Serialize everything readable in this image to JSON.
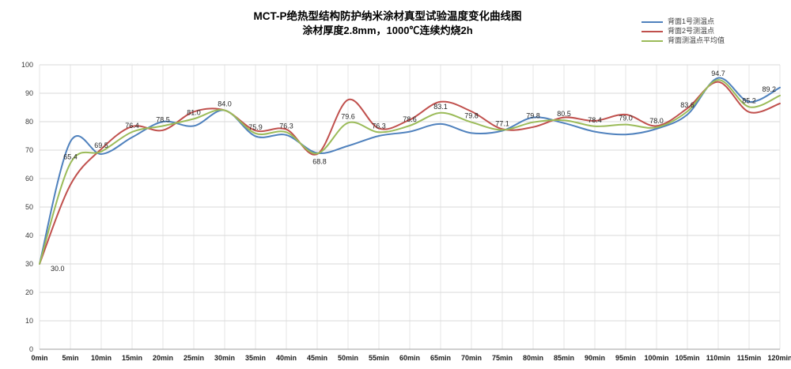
{
  "header": {
    "title": "MCT-P绝热型结构防护纳米涂材真型试验温度变化曲线图",
    "subtitle": "涂材厚度2.8mm，1000℃连续灼烧2h"
  },
  "colors": {
    "series_blue": "#4F81BD",
    "series_red": "#C0504D",
    "series_green": "#9BBB59",
    "gridline": "#d9d9d9",
    "gridline_vertical": "#e6e6e6",
    "axis_line": "#9f9f9f",
    "background": "#ffffff"
  },
  "chart_data": {
    "type": "line",
    "title": "MCT-P绝热型结构防护纳米涂材真型试验温度变化曲线图",
    "subtitle": "涂材厚度2.8mm，1000℃连续灼烧2h",
    "x_minutes": [
      0,
      5,
      10,
      15,
      20,
      25,
      30,
      35,
      40,
      45,
      50,
      55,
      60,
      65,
      70,
      75,
      80,
      85,
      90,
      95,
      100,
      105,
      110,
      115,
      120
    ],
    "x_tick_labels": [
      "0min",
      "5min",
      "10min",
      "15min",
      "20min",
      "25min",
      "30min",
      "35min",
      "40min",
      "45min",
      "50min",
      "55min",
      "60min",
      "65min",
      "70min",
      "75min",
      "80min",
      "85min",
      "90min",
      "95min",
      "100min",
      "105min",
      "110min",
      "115min",
      "120min"
    ],
    "y_tick_labels": [
      "0",
      "10",
      "20",
      "30",
      "40",
      "50",
      "60",
      "70",
      "80",
      "90",
      "100"
    ],
    "ylim": [
      0,
      100
    ],
    "y_tick_step": 10,
    "grid": true,
    "smooth_lines": true,
    "legend_position": "top-right",
    "series": [
      {
        "name": "背面1号测温点",
        "color": "#4F81BD",
        "values": [
          30.0,
          73.0,
          68.6,
          74.5,
          80.0,
          78.5,
          84.0,
          74.9,
          75.3,
          69.0,
          71.5,
          75.0,
          76.5,
          79.2,
          76.0,
          76.8,
          81.5,
          79.5,
          76.5,
          75.5,
          77.5,
          82.5,
          95.4,
          87.0,
          92.0
        ],
        "data_labels": false
      },
      {
        "name": "背面2号测温点",
        "color": "#C0504D",
        "values": [
          30.0,
          57.8,
          70.4,
          78.3,
          77.0,
          83.5,
          84.0,
          76.9,
          77.3,
          68.6,
          87.7,
          77.6,
          80.7,
          87.0,
          83.6,
          77.4,
          78.1,
          81.5,
          80.3,
          82.5,
          78.5,
          84.7,
          94.0,
          83.4,
          86.4
        ],
        "data_labels": false
      },
      {
        "name": "背面测温点平均值",
        "color": "#9BBB59",
        "values": [
          30.0,
          65.4,
          69.5,
          76.4,
          78.5,
          81.0,
          84.0,
          75.9,
          76.3,
          68.8,
          79.6,
          76.3,
          78.6,
          83.1,
          79.8,
          77.1,
          79.8,
          80.5,
          78.4,
          79.0,
          78.0,
          83.6,
          94.7,
          85.2,
          89.2
        ],
        "data_labels": true
      }
    ]
  }
}
